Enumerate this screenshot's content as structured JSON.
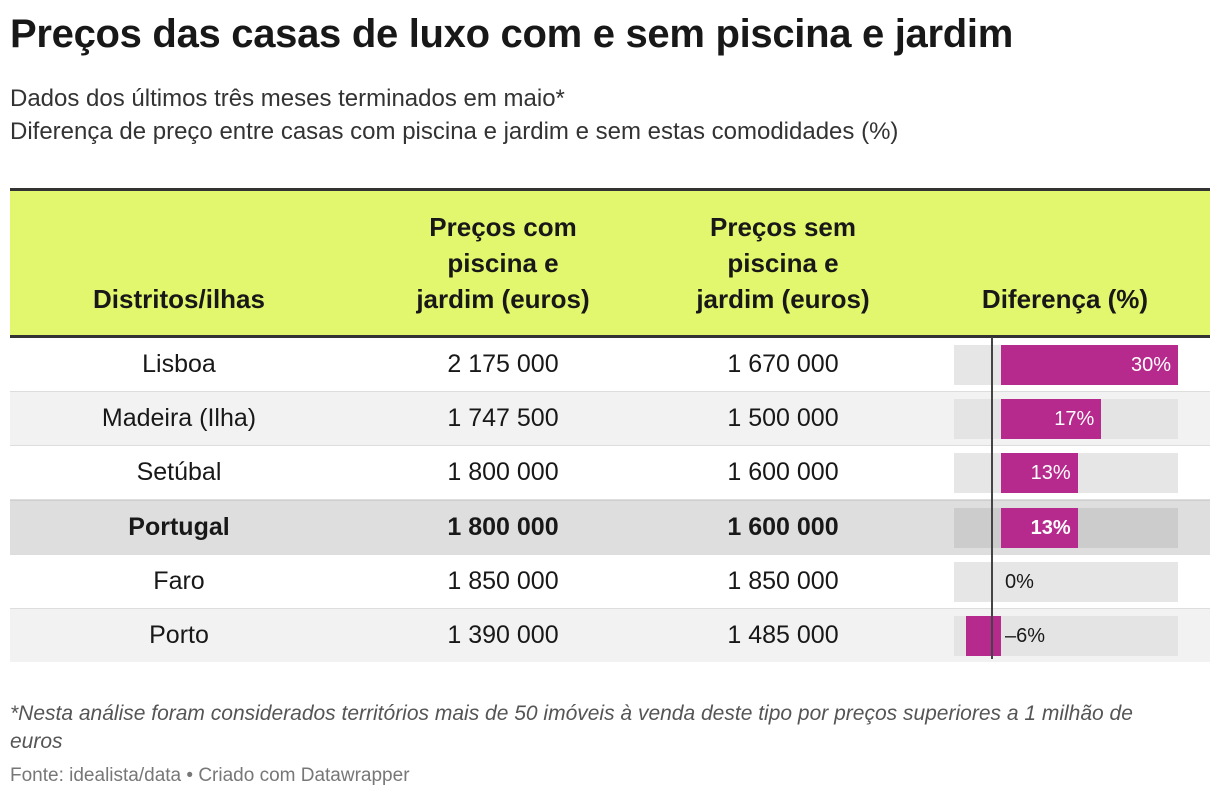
{
  "title": "Preços das casas de luxo com e sem piscina e jardim",
  "subtitle_line1": "Dados dos últimos três meses terminados em maio*",
  "subtitle_line2": "Diferença de preço entre casas com piscina e jardim e sem estas comodidades (%)",
  "note": "*Nesta análise foram considerados territórios mais de 50 imóveis à venda deste tipo por preços superiores a 1 milhão de euros",
  "source": "Fonte: idealista/data • Criado com Datawrapper",
  "colors": {
    "header_bg": "#e3f76e",
    "bar": "#b72a8d",
    "highlight_row": "#dedede"
  },
  "chart_data": {
    "type": "table",
    "columns": {
      "district": "Distritos/ilhas",
      "with_pool": "Preços com piscina e jardim (euros)",
      "without_pool": "Preços sem piscina e jardim (euros)",
      "difference": "Diferença (%)"
    },
    "difference_range": [
      -6,
      30
    ],
    "rows": [
      {
        "district": "Lisboa",
        "with_pool": "2 175 000",
        "without_pool": "1 670 000",
        "difference": 30,
        "difference_label": "30%",
        "highlight": false
      },
      {
        "district": "Madeira (Ilha)",
        "with_pool": "1 747 500",
        "without_pool": "1 500 000",
        "difference": 17,
        "difference_label": "17%",
        "highlight": false
      },
      {
        "district": "Setúbal",
        "with_pool": "1 800 000",
        "without_pool": "1 600 000",
        "difference": 13,
        "difference_label": "13%",
        "highlight": false
      },
      {
        "district": "Portugal",
        "with_pool": "1 800 000",
        "without_pool": "1 600 000",
        "difference": 13,
        "difference_label": "13%",
        "highlight": true
      },
      {
        "district": "Faro",
        "with_pool": "1 850 000",
        "without_pool": "1 850 000",
        "difference": 0,
        "difference_label": "0%",
        "highlight": false
      },
      {
        "district": "Porto",
        "with_pool": "1 390 000",
        "without_pool": "1 485 000",
        "difference": -6,
        "difference_label": "–6%",
        "highlight": false
      }
    ]
  }
}
